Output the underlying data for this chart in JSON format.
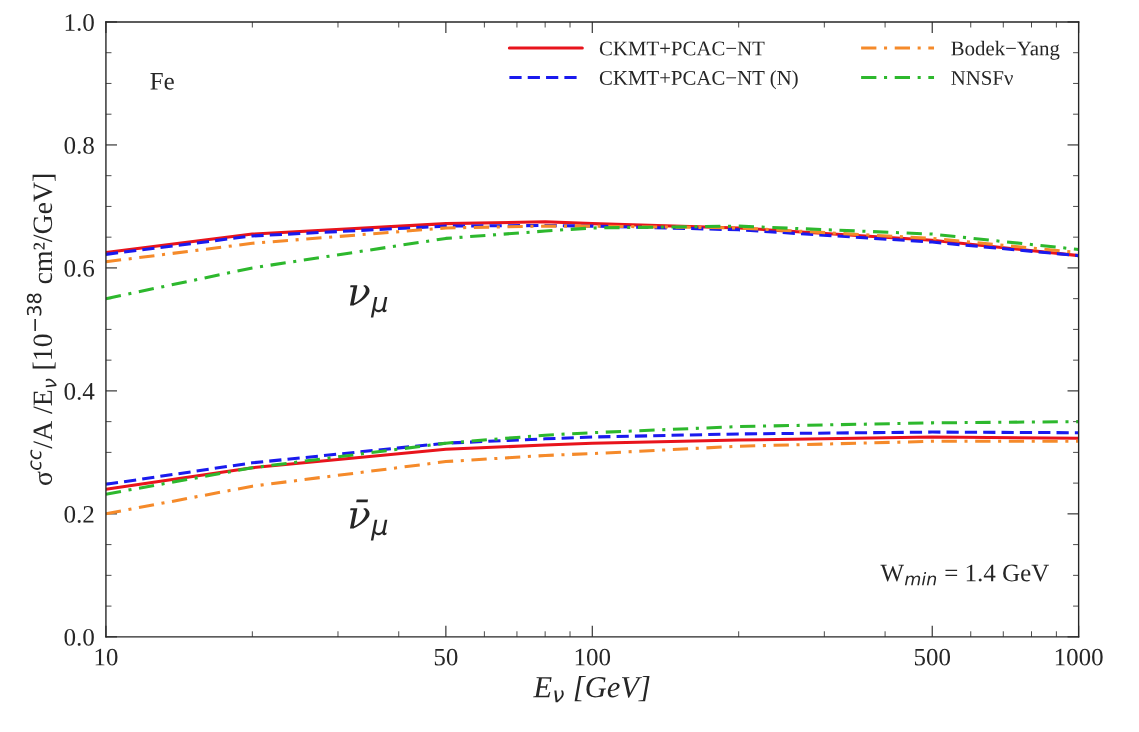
{
  "chart_data": {
    "type": "line",
    "xlabel": "E$_{ν}$ [GeV]",
    "ylabel": "σ$^{cc}$/A /E$_{ν}$ [10$^{−38}$ cm²/GeV]",
    "x": [
      10,
      20,
      50,
      80,
      100,
      200,
      500,
      1000
    ],
    "series": [
      {
        "name": "CKMT+PCAC−NT",
        "color": "#e8141c",
        "line_style": "solid",
        "values": [
          0.625,
          0.655,
          0.672,
          0.675,
          0.672,
          0.665,
          0.645,
          0.62
        ]
      },
      {
        "name": "CKMT+PCAC−NT (N)",
        "color": "#1a1aee",
        "line_style": "dashed",
        "values": [
          0.622,
          0.652,
          0.668,
          0.669,
          0.668,
          0.662,
          0.642,
          0.62
        ]
      },
      {
        "name": "Bodek−Yang",
        "color": "#f58a2a",
        "line_style": "dashdot",
        "values": [
          0.61,
          0.64,
          0.665,
          0.668,
          0.668,
          0.665,
          0.648,
          0.625
        ]
      },
      {
        "name": "NNSFν",
        "color": "#2db82d",
        "line_style": "dashdot",
        "values": [
          0.55,
          0.6,
          0.648,
          0.66,
          0.665,
          0.668,
          0.655,
          0.63
        ]
      },
      {
        "color": "#e8141c",
        "line_style": "solid",
        "values": [
          0.24,
          0.275,
          0.305,
          0.312,
          0.315,
          0.32,
          0.325,
          0.323
        ]
      },
      {
        "color": "#1a1aee",
        "line_style": "dashed",
        "values": [
          0.248,
          0.283,
          0.315,
          0.322,
          0.325,
          0.33,
          0.333,
          0.332
        ]
      },
      {
        "color": "#f58a2a",
        "line_style": "dashdot",
        "values": [
          0.2,
          0.245,
          0.285,
          0.295,
          0.298,
          0.31,
          0.318,
          0.318
        ]
      },
      {
        "color": "#2db82d",
        "line_style": "dashdot",
        "values": [
          0.232,
          0.275,
          0.315,
          0.328,
          0.332,
          0.342,
          0.348,
          0.35
        ]
      }
    ],
    "xlim": [
      10,
      1000
    ],
    "ylim": [
      0,
      1
    ],
    "log": "x",
    "xticks": [
      10,
      50,
      100,
      500,
      1000
    ],
    "yticks": [
      {
        "value": 0,
        "label": "0.0"
      },
      {
        "value": 0.2,
        "label": "0.2"
      },
      {
        "value": 0.4,
        "label": "0.4"
      },
      {
        "value": 0.6,
        "label": "0.6"
      },
      {
        "value": 0.8,
        "label": "0.8"
      },
      {
        "value": 1,
        "label": "1.0"
      }
    ],
    "grid": false,
    "legend": "top right",
    "annotations": [
      "Fe",
      "ν$_{μ}$",
      "ν̄$_{μ}$",
      "W$_{min}$ = 1.4 GeV"
    ]
  }
}
